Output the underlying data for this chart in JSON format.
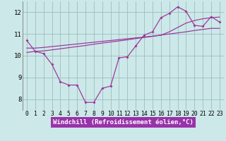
{
  "bg_color": "#cce8e8",
  "line_color": "#993399",
  "grid_color": "#99bbbb",
  "xlabel": "Windchill (Refroidissement éolien,°C)",
  "xlabel_bg": "#9933aa",
  "xlabel_color": "white",
  "xlabel_fontsize": 6.5,
  "tick_fontsize": 5.8,
  "ytick_fontsize": 6.5,
  "series1_y": [
    10.7,
    10.2,
    10.1,
    9.6,
    8.8,
    8.65,
    8.65,
    7.85,
    7.85,
    8.5,
    8.6,
    9.9,
    9.95,
    10.45,
    10.95,
    11.1,
    11.75,
    11.95,
    12.25,
    12.05,
    11.4,
    11.35,
    11.8,
    11.55
  ],
  "series2_y": [
    10.15,
    10.2,
    10.22,
    10.27,
    10.32,
    10.37,
    10.42,
    10.47,
    10.53,
    10.58,
    10.63,
    10.68,
    10.73,
    10.79,
    10.84,
    10.89,
    10.95,
    11.0,
    11.05,
    11.1,
    11.16,
    11.21,
    11.26,
    11.26
  ],
  "series3_y": [
    10.35,
    10.35,
    10.38,
    10.42,
    10.46,
    10.5,
    10.54,
    10.58,
    10.62,
    10.66,
    10.7,
    10.74,
    10.78,
    10.82,
    10.86,
    10.9,
    10.94,
    11.1,
    11.3,
    11.5,
    11.62,
    11.7,
    11.75,
    11.78
  ],
  "xlim": [
    -0.5,
    23.5
  ],
  "ylim": [
    7.5,
    12.5
  ],
  "yticks": [
    8,
    9,
    10,
    11,
    12
  ],
  "xtick_labels": [
    "0",
    "1",
    "2",
    "3",
    "4",
    "5",
    "6",
    "7",
    "8",
    "9",
    "10",
    "11",
    "12",
    "13",
    "14",
    "15",
    "16",
    "17",
    "18",
    "19",
    "20",
    "21",
    "22",
    "23"
  ]
}
